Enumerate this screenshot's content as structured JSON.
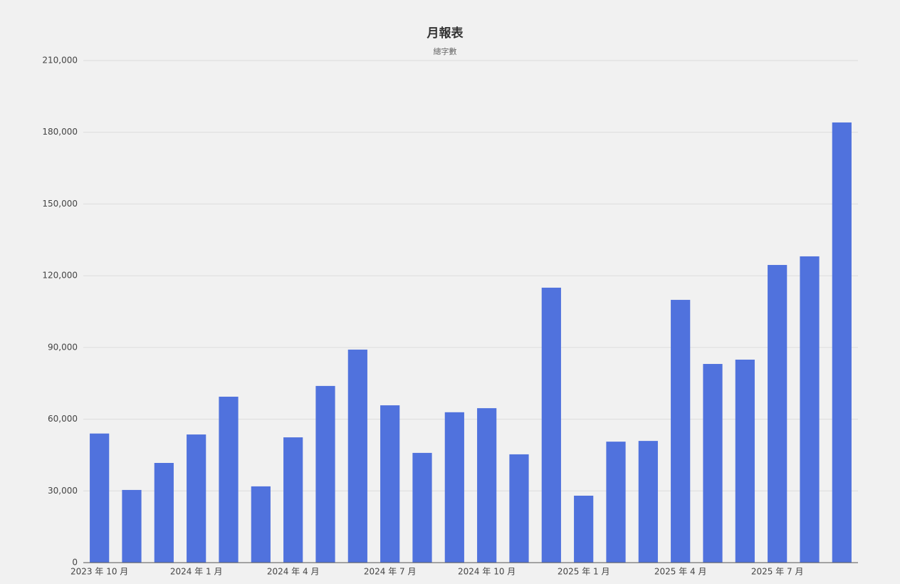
{
  "chart_data": {
    "type": "bar",
    "title": "月報表",
    "subtitle": "總字數",
    "categories": [
      "2023 年 10 月",
      null,
      null,
      "2024 年 1 月",
      null,
      null,
      "2024 年 4 月",
      null,
      null,
      "2024 年 7 月",
      null,
      null,
      "2024 年 10 月",
      null,
      null,
      "2025 年 1 月",
      null,
      null,
      "2025 年 4 月",
      null,
      null,
      "2025 年 7 月",
      null,
      null
    ],
    "values": [
      54000,
      30400,
      41700,
      53600,
      69400,
      31900,
      52400,
      73900,
      89100,
      65800,
      45900,
      62900,
      64600,
      45300,
      115000,
      28000,
      50600,
      50900,
      109900,
      83100,
      84900,
      124500,
      128100,
      184100
    ],
    "color": "#5072dd",
    "ylim": [
      0,
      210000
    ],
    "yticks": [
      0,
      {
        "value": 30000,
        "label": "30,000"
      },
      {
        "value": 60000,
        "label": "60,000"
      },
      {
        "value": 90000,
        "label": "90,000"
      },
      {
        "value": 120000,
        "label": "120,000"
      },
      {
        "value": 150000,
        "label": "150,000"
      },
      {
        "value": 180000,
        "label": "180,000"
      },
      {
        "value": 210000,
        "label": "210,000"
      }
    ],
    "grid": true
  }
}
